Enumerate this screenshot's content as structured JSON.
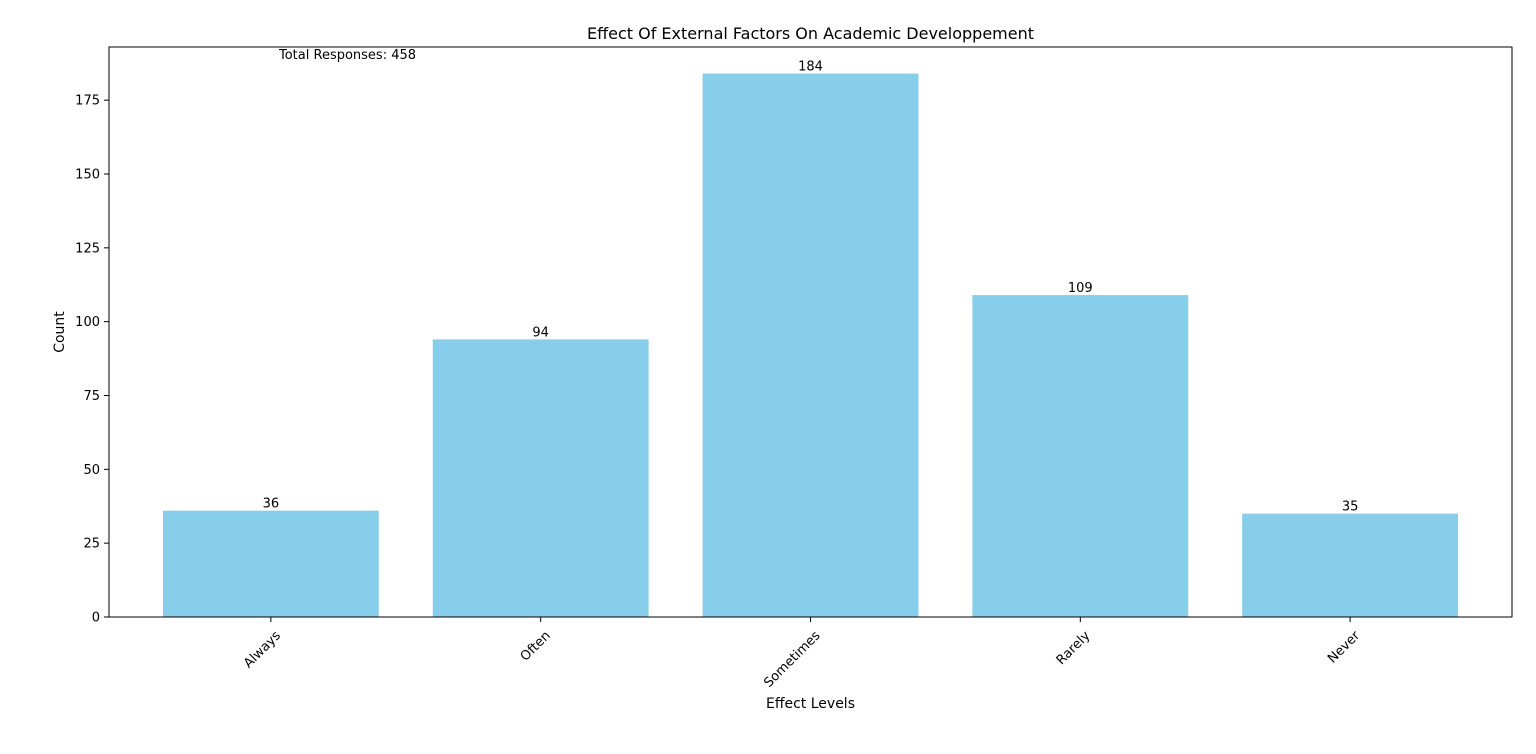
{
  "chart_data": {
    "type": "bar",
    "title": "Effect Of External Factors On Academic Developpement",
    "xlabel": "Effect Levels",
    "ylabel": "Count",
    "categories": [
      "Always",
      "Often",
      "Sometimes",
      "Rarely",
      "Never"
    ],
    "values": [
      36,
      94,
      184,
      109,
      35
    ],
    "data_labels": [
      "36",
      "94",
      "184",
      "109",
      "35"
    ],
    "ylim": [
      0,
      193
    ],
    "yticks": [
      0,
      25,
      50,
      75,
      100,
      125,
      150,
      175
    ],
    "ytick_labels": [
      "0",
      "25",
      "50",
      "75",
      "100",
      "125",
      "150",
      "175"
    ],
    "annotation": "Total Responses: 458",
    "bar_color": "#87ceeb",
    "grid": false,
    "legend": "none",
    "xtick_rotation": "45 degrees"
  }
}
